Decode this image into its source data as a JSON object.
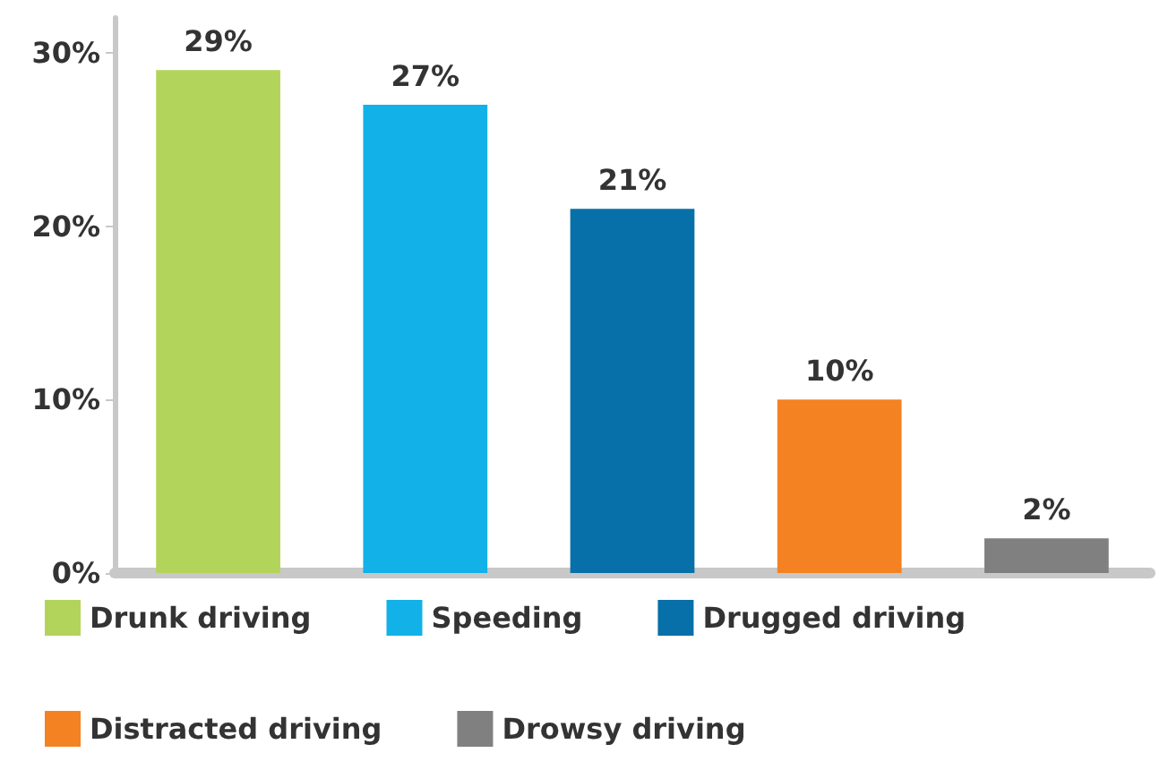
{
  "chart_data": {
    "type": "bar",
    "categories": [
      null,
      null,
      null,
      null,
      null
    ],
    "series": [
      {
        "name": "Drunk driving",
        "color": "#b3d45a",
        "values": [
          29,
          null,
          null,
          null,
          null
        ]
      },
      {
        "name": "Speeding",
        "color": "#12b1e8",
        "values": [
          null,
          27,
          null,
          null,
          null
        ]
      },
      {
        "name": "Drugged driving",
        "color": "#0870a8",
        "values": [
          null,
          null,
          21,
          null,
          null
        ]
      },
      {
        "name": "Distracted driving",
        "color": "#f48222",
        "values": [
          null,
          null,
          null,
          10,
          null
        ]
      },
      {
        "name": "Drowsy driving",
        "color": "#808080",
        "values": [
          null,
          null,
          null,
          null,
          2
        ]
      }
    ],
    "ylim": [
      0,
      32
    ],
    "yticks": [
      {
        "value": 0,
        "label": "0%"
      },
      {
        "value": 10,
        "label": "10%"
      },
      {
        "value": 20,
        "label": "20%"
      },
      {
        "value": 30,
        "label": "30%"
      }
    ],
    "value_labels": [
      "29%",
      "27%",
      "21%",
      "10%",
      "2%"
    ],
    "grid": false,
    "legend": "bottom"
  }
}
